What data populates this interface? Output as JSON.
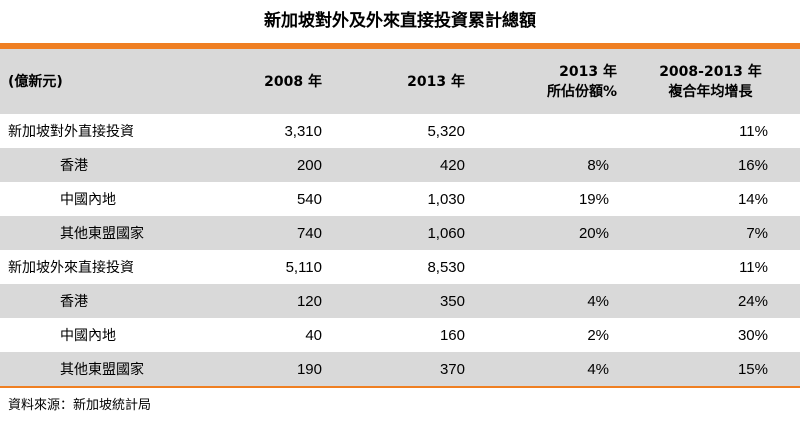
{
  "title": "新加坡對外及外來直接投資累計總額",
  "colors": {
    "accent": "#ef7f22",
    "shade": "#d9d9d9"
  },
  "header": {
    "unit": "(億新元)",
    "col_2008": "2008 年",
    "col_2013": "2013 年",
    "share_line1": "2013 年",
    "share_line2": "所佔份額%",
    "cagr_line1": "2008-2013 年",
    "cagr_line2": "複合年均增長"
  },
  "rows": [
    {
      "label": "新加坡對外直接投資",
      "y2008": "3,310",
      "y2013": "5,320",
      "share": "",
      "cagr": "11%"
    },
    {
      "label": "香港",
      "y2008": "200",
      "y2013": "420",
      "share": "8%",
      "cagr": "16%"
    },
    {
      "label": "中國內地",
      "y2008": "540",
      "y2013": "1,030",
      "share": "19%",
      "cagr": "14%"
    },
    {
      "label": "其他東盟國家",
      "y2008": "740",
      "y2013": "1,060",
      "share": "20%",
      "cagr": "7%"
    },
    {
      "label": "新加坡外來直接投資",
      "y2008": "5,110",
      "y2013": "8,530",
      "share": "",
      "cagr": "11%"
    },
    {
      "label": "香港",
      "y2008": "120",
      "y2013": "350",
      "share": "4%",
      "cagr": "24%"
    },
    {
      "label": "中國內地",
      "y2008": "40",
      "y2013": "160",
      "share": "2%",
      "cagr": "30%"
    },
    {
      "label": "其他東盟國家",
      "y2008": "190",
      "y2013": "370",
      "share": "4%",
      "cagr": "15%"
    }
  ],
  "source": "資料來源：新加坡統計局"
}
